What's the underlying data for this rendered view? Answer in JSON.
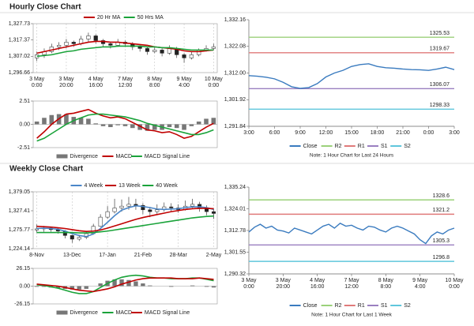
{
  "headers": [
    "Hourly Close Chart",
    "Weekly Close Chart"
  ],
  "chart_data": [
    {
      "type": "candlestick",
      "categories": [
        [
          "3 May",
          "0:00"
        ],
        null,
        null,
        null,
        [
          "3 May",
          "20:00"
        ],
        null,
        null,
        null,
        [
          "4 May",
          "16:00"
        ],
        null,
        null,
        null,
        [
          "7 May",
          "12:00"
        ],
        null,
        null,
        null,
        [
          "8 May",
          "8:00"
        ],
        null,
        null,
        null,
        [
          "9 May",
          "4:00"
        ],
        null,
        null,
        null,
        [
          "10 May",
          "0:00"
        ]
      ],
      "candles": [
        [
          1306,
          1310,
          1304,
          1308
        ],
        [
          1308,
          1312,
          1306,
          1310
        ],
        [
          1310,
          1315,
          1309,
          1313
        ],
        [
          1313,
          1316,
          1311,
          1314
        ],
        [
          1314,
          1318,
          1312,
          1316
        ],
        [
          1316,
          1317,
          1313,
          1315
        ],
        [
          1315,
          1320,
          1314,
          1318
        ],
        [
          1318,
          1322,
          1316,
          1320
        ],
        [
          1320,
          1321,
          1315,
          1317
        ],
        [
          1317,
          1318,
          1313,
          1315
        ],
        [
          1315,
          1316,
          1312,
          1314
        ],
        [
          1314,
          1318,
          1313,
          1316
        ],
        [
          1316,
          1317,
          1313,
          1315
        ],
        [
          1315,
          1316,
          1311,
          1313
        ],
        [
          1313,
          1314,
          1310,
          1312
        ],
        [
          1312,
          1313,
          1308,
          1310
        ],
        [
          1310,
          1313,
          1309,
          1311
        ],
        [
          1311,
          1312,
          1307,
          1309
        ],
        [
          1309,
          1314,
          1308,
          1312
        ],
        [
          1312,
          1313,
          1306,
          1308
        ],
        [
          1308,
          1309,
          1303,
          1306
        ],
        [
          1306,
          1310,
          1305,
          1308
        ],
        [
          1308,
          1312,
          1307,
          1311
        ],
        [
          1311,
          1314,
          1310,
          1312
        ],
        [
          1312,
          1315,
          1311,
          1313
        ]
      ],
      "series": [
        {
          "name": "20 Hr MA",
          "color": "#c00000",
          "values": [
            1309,
            1310,
            1311,
            1312,
            1313,
            1314,
            1315,
            1316,
            1316.5,
            1316.5,
            1316,
            1316,
            1315.5,
            1315,
            1314.5,
            1314,
            1313,
            1312.5,
            1312,
            1311.5,
            1310.5,
            1310,
            1310,
            1310.5,
            1311
          ]
        },
        {
          "name": "50 Hrs MA",
          "color": "#1aa33a",
          "values": [
            1307,
            1307.5,
            1308,
            1309,
            1310,
            1310.5,
            1311.5,
            1312,
            1312.5,
            1313,
            1313,
            1313.5,
            1313.5,
            1313.5,
            1313.5,
            1313,
            1313,
            1312.5,
            1312.5,
            1312,
            1311.5,
            1311,
            1311,
            1311,
            1311
          ]
        }
      ],
      "ylim": [
        1296.66,
        1327.73
      ],
      "yticks": [
        {
          "value": 1296.66,
          "label": "1,296.66"
        },
        {
          "value": 1307.02,
          "label": "1,307.02"
        },
        {
          "value": 1317.37,
          "label": "1,317.37"
        },
        {
          "value": 1327.73,
          "label": "1,327.73"
        }
      ]
    },
    {
      "type": "macd",
      "series": [
        {
          "name": "Divergence",
          "color": "#777777",
          "style": "bar",
          "values": [
            0.3,
            0.7,
            1.0,
            1.1,
            1.1,
            0.8,
            0.7,
            0.6,
            0.1,
            -0.2,
            -0.3,
            -0.1,
            -0.2,
            -0.4,
            -0.6,
            -0.7,
            -0.6,
            -0.6,
            -0.3,
            -0.4,
            -0.6,
            -0.2,
            0.3,
            0.6,
            0.7
          ]
        },
        {
          "name": "MACD",
          "color": "#c00000",
          "style": "line",
          "values": [
            -1.5,
            -0.8,
            0,
            0.6,
            1.1,
            1.2,
            1.4,
            1.6,
            1.2,
            0.9,
            0.7,
            0.8,
            0.6,
            0.2,
            -0.2,
            -0.6,
            -0.7,
            -0.9,
            -0.8,
            -1.1,
            -1.5,
            -1.3,
            -0.8,
            -0.3,
            0.1
          ]
        },
        {
          "name": "MACD Signal Line",
          "color": "#1aa33a",
          "style": "line",
          "values": [
            -1.8,
            -1.5,
            -1.0,
            -0.5,
            0,
            0.4,
            0.7,
            1.0,
            1.1,
            1.1,
            1.0,
            0.9,
            0.8,
            0.6,
            0.4,
            0.1,
            -0.1,
            -0.3,
            -0.5,
            -0.7,
            -0.9,
            -1.1,
            -1.1,
            -0.9,
            -0.6
          ]
        }
      ],
      "ylim": [
        -2.51,
        2.51
      ],
      "yticks": [
        -2.51,
        {
          "value": 0,
          "label": "0.00"
        },
        2.51
      ]
    },
    {
      "type": "line",
      "categories": [
        "3:00",
        null,
        null,
        "6:00",
        null,
        null,
        "9:00",
        null,
        null,
        "12:00",
        null,
        null,
        "15:00",
        null,
        null,
        "18:00",
        null,
        null,
        "21:00",
        null,
        null,
        "0:00",
        null,
        null,
        "3:00"
      ],
      "series": [
        {
          "name": "Close",
          "color": "#3a7bbf",
          "values": [
            1311,
            1310.8,
            1310.4,
            1309.8,
            1308.5,
            1306.8,
            1306.2,
            1306.5,
            1308,
            1310.5,
            1312,
            1313,
            1314.5,
            1315.2,
            1315.5,
            1314.5,
            1314,
            1313.8,
            1313.5,
            1313.3,
            1313.2,
            1313,
            1313.5,
            1314.2,
            1313.3
          ]
        }
      ],
      "levels": [
        {
          "name": "R2",
          "color": "#9bd17a",
          "value": 1325.53
        },
        {
          "name": "R1",
          "color": "#e07a7a",
          "value": 1319.67
        },
        {
          "name": "S1",
          "color": "#9a7fc0",
          "value": 1306.07
        },
        {
          "name": "S2",
          "color": "#5fc6dc",
          "value": 1298.33
        }
      ],
      "ylim": [
        1291.84,
        1332.16
      ],
      "yticks": [
        {
          "value": 1291.84,
          "label": "1,291.84"
        },
        {
          "value": 1301.92,
          "label": "1,301.92"
        },
        {
          "value": 1312,
          "label": "1,312.00"
        },
        {
          "value": 1322.08,
          "label": "1,322.08"
        },
        {
          "value": 1332.16,
          "label": "1,332.16"
        }
      ],
      "note": "Note: 1 Hour Chart for Last 24 Hours"
    },
    {
      "type": "candlestick",
      "categories": [
        "8-Nov",
        null,
        null,
        null,
        null,
        "13-Dec",
        null,
        null,
        null,
        null,
        "17-Jan",
        null,
        null,
        null,
        null,
        "21-Feb",
        null,
        null,
        null,
        null,
        "28-Mar",
        null,
        null,
        null,
        null,
        "2-May"
      ],
      "candles": [
        [
          1275,
          1290,
          1268,
          1278
        ],
        [
          1278,
          1286,
          1270,
          1280
        ],
        [
          1280,
          1284,
          1270,
          1276
        ],
        [
          1276,
          1280,
          1265,
          1272
        ],
        [
          1272,
          1275,
          1252,
          1260
        ],
        [
          1260,
          1262,
          1240,
          1250
        ],
        [
          1250,
          1262,
          1245,
          1255
        ],
        [
          1255,
          1270,
          1250,
          1265
        ],
        [
          1265,
          1292,
          1262,
          1285
        ],
        [
          1285,
          1318,
          1283,
          1310
        ],
        [
          1310,
          1340,
          1305,
          1325
        ],
        [
          1325,
          1360,
          1320,
          1335
        ],
        [
          1335,
          1358,
          1325,
          1340
        ],
        [
          1340,
          1365,
          1330,
          1345
        ],
        [
          1345,
          1360,
          1330,
          1342
        ],
        [
          1342,
          1348,
          1318,
          1330
        ],
        [
          1330,
          1338,
          1310,
          1325
        ],
        [
          1325,
          1345,
          1318,
          1330
        ],
        [
          1330,
          1350,
          1325,
          1338
        ],
        [
          1338,
          1348,
          1325,
          1335
        ],
        [
          1335,
          1345,
          1322,
          1330
        ],
        [
          1330,
          1355,
          1328,
          1340
        ],
        [
          1340,
          1360,
          1335,
          1345
        ],
        [
          1345,
          1352,
          1325,
          1335
        ],
        [
          1335,
          1342,
          1315,
          1325
        ],
        [
          1325,
          1332,
          1305,
          1320
        ]
      ],
      "series": [
        {
          "name": "4 Week",
          "color": "#4a86c8",
          "values": [
            1279,
            1280,
            1279,
            1277,
            1272,
            1265,
            1260,
            1257,
            1264,
            1279,
            1296,
            1314,
            1329,
            1336,
            1341,
            1339,
            1336,
            1332,
            1331,
            1332,
            1333,
            1336,
            1338,
            1338,
            1336,
            1331
          ]
        },
        {
          "name": "13 Week",
          "color": "#c00000",
          "values": [
            1285,
            1284,
            1283,
            1281,
            1279,
            1276,
            1273,
            1271,
            1272,
            1275,
            1280,
            1286,
            1292,
            1298,
            1304,
            1309,
            1313,
            1317,
            1321,
            1325,
            1328,
            1331,
            1333,
            1334,
            1334,
            1333
          ]
        },
        {
          "name": "40 Week",
          "color": "#1aa33a",
          "values": [
            1268,
            1268,
            1268,
            1268,
            1268,
            1268,
            1267,
            1267,
            1268,
            1270,
            1272,
            1275,
            1278,
            1281,
            1284,
            1287,
            1290,
            1293,
            1296,
            1299,
            1302,
            1305,
            1308,
            1310,
            1312,
            1313
          ]
        }
      ],
      "ylim": [
        1224.14,
        1379.05
      ],
      "yticks": [
        {
          "value": 1224.14,
          "label": "1,224.14"
        },
        {
          "value": 1275.77,
          "label": "1,275.77"
        },
        {
          "value": 1327.41,
          "label": "1,327.41"
        },
        {
          "value": 1379.05,
          "label": "1,379.05"
        }
      ]
    },
    {
      "type": "macd",
      "series": [
        {
          "name": "Divergence",
          "color": "#777777",
          "style": "bar",
          "values": [
            -1,
            -1,
            -2,
            -3,
            -4,
            -5,
            -5,
            -4,
            0,
            4,
            8,
            10,
            10,
            9,
            7,
            4,
            1,
            0,
            0,
            -1,
            0,
            0,
            1,
            0,
            -1,
            -2
          ]
        },
        {
          "name": "MACD",
          "color": "#1aa33a",
          "style": "line",
          "values": [
            2,
            1,
            -1,
            -3,
            -6,
            -9,
            -11,
            -11,
            -8,
            -2,
            4,
            9,
            13,
            15,
            16,
            15,
            13,
            12,
            12,
            11,
            11,
            11,
            12,
            12,
            10,
            8
          ]
        },
        {
          "name": "MACD Signal Line",
          "color": "#c00000",
          "style": "line",
          "values": [
            3,
            2,
            1,
            0,
            -2,
            -4,
            -6,
            -7,
            -8,
            -6,
            -4,
            -1,
            3,
            6,
            9,
            11,
            12,
            12,
            12,
            12,
            11,
            11,
            11,
            12,
            11,
            10
          ]
        }
      ],
      "ylim": [
        -26.15,
        26.15
      ],
      "yticks": [
        -26.15,
        {
          "value": 0,
          "label": "0.00"
        },
        26.15
      ]
    },
    {
      "type": "line",
      "categories": [
        [
          "3 May",
          "0:00"
        ],
        null,
        null,
        null,
        null,
        null,
        [
          "3 May",
          "20:00"
        ],
        null,
        null,
        null,
        null,
        null,
        [
          "4 May",
          "16:00"
        ],
        null,
        null,
        null,
        null,
        null,
        [
          "7 May",
          "12:00"
        ],
        null,
        null,
        null,
        null,
        null,
        [
          "8 May",
          "8:00"
        ],
        null,
        null,
        null,
        null,
        null,
        [
          "9 May",
          "4:00"
        ],
        null,
        null,
        null,
        null,
        null,
        [
          "10 May",
          "0:00"
        ]
      ],
      "series": [
        {
          "name": "Close",
          "color": "#3a7bbf",
          "values": [
            1312,
            1314.5,
            1316,
            1314,
            1315,
            1313,
            1312.5,
            1311.5,
            1314,
            1313,
            1312,
            1311,
            1313,
            1315,
            1316,
            1314,
            1316.5,
            1315,
            1315.5,
            1314,
            1313,
            1315,
            1314.5,
            1313,
            1312,
            1314,
            1315,
            1314,
            1312.5,
            1311,
            1308,
            1306,
            1310,
            1312,
            1311,
            1313,
            1314
          ]
        }
      ],
      "levels": [
        {
          "name": "R2",
          "color": "#9bd17a",
          "value": 1328.6
        },
        {
          "name": "R1",
          "color": "#e07a7a",
          "value": 1321.2
        },
        {
          "name": "S1",
          "color": "#9a7fc0",
          "value": 1305.3
        },
        {
          "name": "S2",
          "color": "#5fc6dc",
          "value": 1296.8
        }
      ],
      "ylim": [
        1290.32,
        1335.24
      ],
      "yticks": [
        {
          "value": 1290.32,
          "label": "1,290.32"
        },
        {
          "value": 1301.55,
          "label": "1,301.55"
        },
        {
          "value": 1312.78,
          "label": "1,312.78"
        },
        {
          "value": 1324.01,
          "label": "1,324.01"
        },
        {
          "value": 1335.24,
          "label": "1,335.24"
        }
      ],
      "note": "Note: 1 Hour Chart for Last 1 Week"
    }
  ]
}
